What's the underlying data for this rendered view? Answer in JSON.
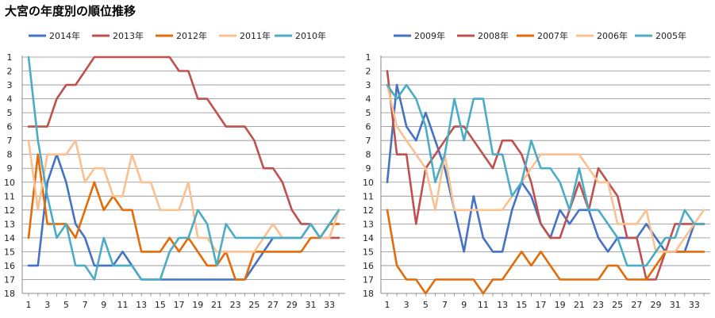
{
  "page": {
    "title": "大宮の年度別の順位推移"
  },
  "chart_data": [
    {
      "type": "line",
      "title": "",
      "xlabel": "",
      "ylabel": "",
      "ylim": [
        18,
        1
      ],
      "y_inverted": true,
      "xlim": [
        1,
        34
      ],
      "x_ticks": [
        "1",
        "3",
        "5",
        "7",
        "9",
        "11",
        "13",
        "15",
        "17",
        "19",
        "21",
        "23",
        "25",
        "27",
        "29",
        "31",
        "33"
      ],
      "y_ticks": [
        "1",
        "2",
        "3",
        "4",
        "5",
        "6",
        "7",
        "8",
        "9",
        "10",
        "11",
        "12",
        "13",
        "14",
        "15",
        "16",
        "17",
        "18"
      ],
      "grid": "horizontal",
      "legend": "top",
      "series": [
        {
          "name": "2014年",
          "color": "#4472c4",
          "values": [
            16,
            16,
            10,
            8,
            10,
            13,
            14,
            16,
            16,
            16,
            15,
            16,
            17,
            17,
            17,
            17,
            17,
            17,
            17,
            17,
            17,
            17,
            17,
            17,
            16,
            15,
            14,
            14,
            14,
            14,
            13,
            14,
            13,
            13
          ]
        },
        {
          "name": "2013年",
          "color": "#c0504d",
          "values": [
            6,
            6,
            6,
            4,
            3,
            3,
            2,
            1,
            1,
            1,
            1,
            1,
            1,
            1,
            1,
            1,
            2,
            2,
            4,
            4,
            5,
            6,
            6,
            6,
            7,
            9,
            9,
            10,
            12,
            13,
            13,
            14,
            14,
            14
          ]
        },
        {
          "name": "2012年",
          "color": "#e36c09",
          "values": [
            14,
            8,
            13,
            13,
            13,
            14,
            12,
            10,
            12,
            11,
            12,
            12,
            15,
            15,
            15,
            14,
            15,
            14,
            15,
            16,
            16,
            15,
            17,
            17,
            15,
            15,
            15,
            15,
            15,
            15,
            14,
            14,
            13,
            13
          ]
        },
        {
          "name": "2011年",
          "color": "#fac090",
          "values": [
            7,
            12,
            8,
            8,
            8,
            7,
            10,
            9,
            9,
            11,
            11,
            8,
            10,
            10,
            12,
            12,
            12,
            10,
            14,
            14,
            15,
            15,
            15,
            15,
            15,
            14,
            13,
            14,
            14,
            14,
            13,
            14,
            14,
            12
          ]
        },
        {
          "name": "2010年",
          "color": "#4bacc6",
          "values": [
            1,
            7,
            11,
            14,
            13,
            16,
            16,
            17,
            14,
            16,
            16,
            16,
            17,
            17,
            17,
            15,
            14,
            14,
            12,
            13,
            16,
            13,
            14,
            14,
            14,
            14,
            14,
            14,
            14,
            14,
            13,
            14,
            13,
            12
          ]
        }
      ]
    },
    {
      "type": "line",
      "title": "",
      "xlabel": "",
      "ylabel": "",
      "ylim": [
        18,
        1
      ],
      "y_inverted": true,
      "xlim": [
        1,
        34
      ],
      "x_ticks": [
        "1",
        "3",
        "5",
        "7",
        "9",
        "11",
        "13",
        "15",
        "17",
        "19",
        "21",
        "23",
        "25",
        "27",
        "29",
        "31",
        "33"
      ],
      "y_ticks": [
        "1",
        "2",
        "3",
        "4",
        "5",
        "6",
        "7",
        "8",
        "9",
        "10",
        "11",
        "12",
        "13",
        "14",
        "15",
        "16",
        "17",
        "18"
      ],
      "grid": "horizontal",
      "legend": "top",
      "series": [
        {
          "name": "2009年",
          "color": "#4472c4",
          "values": [
            10,
            3,
            6,
            7,
            5,
            7,
            9,
            12,
            15,
            11,
            14,
            15,
            15,
            12,
            10,
            11,
            13,
            14,
            12,
            13,
            12,
            12,
            14,
            15,
            14,
            14,
            14,
            13,
            14,
            15,
            15,
            15,
            13,
            13
          ]
        },
        {
          "name": "2008年",
          "color": "#c0504d",
          "values": [
            2,
            8,
            8,
            13,
            9,
            8,
            7,
            6,
            6,
            7,
            8,
            9,
            7,
            7,
            8,
            10,
            13,
            14,
            14,
            12,
            10,
            12,
            9,
            10,
            11,
            14,
            14,
            17,
            17,
            15,
            13,
            13,
            13,
            13
          ]
        },
        {
          "name": "2007年",
          "color": "#e36c09",
          "values": [
            12,
            16,
            17,
            17,
            18,
            17,
            17,
            17,
            17,
            17,
            18,
            17,
            17,
            16,
            15,
            16,
            15,
            16,
            17,
            17,
            17,
            17,
            17,
            16,
            16,
            17,
            17,
            17,
            16,
            15,
            15,
            15,
            15,
            15
          ]
        },
        {
          "name": "2006年",
          "color": "#fac090",
          "values": [
            3,
            6,
            7,
            8,
            9,
            12,
            8,
            12,
            12,
            12,
            12,
            12,
            12,
            11,
            10,
            9,
            8,
            8,
            8,
            8,
            8,
            9,
            10,
            10,
            13,
            13,
            13,
            12,
            15,
            15,
            15,
            14,
            13,
            12
          ]
        },
        {
          "name": "2005年",
          "color": "#4bacc6",
          "values": [
            3,
            4,
            3,
            4,
            6,
            10,
            8,
            4,
            7,
            4,
            4,
            8,
            8,
            11,
            10,
            7,
            9,
            9,
            10,
            12,
            9,
            12,
            12,
            13,
            14,
            16,
            16,
            16,
            15,
            14,
            14,
            12,
            13,
            13
          ]
        }
      ]
    }
  ]
}
